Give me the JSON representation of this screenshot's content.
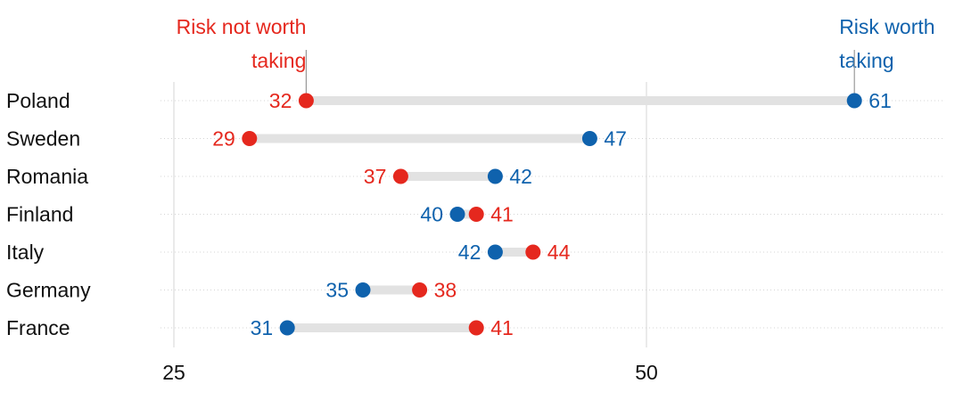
{
  "chart_data": {
    "type": "dumbbell",
    "categories": [
      "Poland",
      "Sweden",
      "Romania",
      "Finland",
      "Italy",
      "Germany",
      "France"
    ],
    "series": [
      {
        "name": "Risk not worth taking",
        "values": [
          32,
          29,
          37,
          41,
          44,
          38,
          41
        ],
        "color": "#e5281e"
      },
      {
        "name": "Risk worth taking",
        "values": [
          61,
          47,
          42,
          40,
          42,
          35,
          31
        ],
        "color": "#0f62ad"
      }
    ],
    "legend": [
      {
        "line1": "Risk not worth",
        "line2": "taking",
        "series": 0,
        "placement": "top-left"
      },
      {
        "line1": "Risk worth",
        "line2": "taking",
        "series": 1,
        "placement": "top-right"
      }
    ],
    "xticks": [
      25,
      50
    ],
    "xlim": [
      25,
      64
    ],
    "grid": true,
    "connector_color": "#e2e2e2",
    "gridline_color": "#d4d4d4"
  }
}
